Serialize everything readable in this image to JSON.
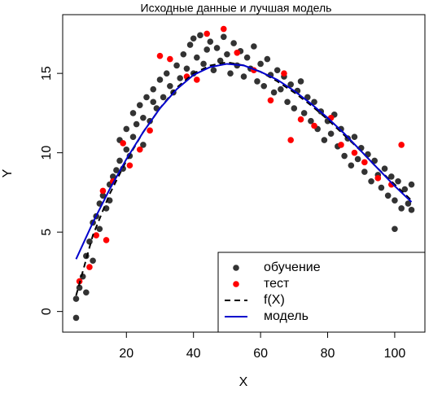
{
  "chart_data": {
    "type": "scatter",
    "title": "Исходные данные и лучшая модель",
    "x_label": "X",
    "y_label": "Y",
    "xlim": [
      1,
      109
    ],
    "ylim": [
      -1.3,
      18.7
    ],
    "xticks": [
      20,
      40,
      60,
      80,
      100
    ],
    "yticks": [
      0,
      5,
      10,
      15
    ],
    "legend": "bottom-right",
    "series": [
      {
        "name": "обучение",
        "color": "#333333",
        "kind": "points",
        "x": [
          5,
          5,
          6,
          7,
          8,
          8,
          9,
          10,
          10,
          11,
          12,
          12,
          13,
          14,
          15,
          15,
          16,
          17,
          18,
          18,
          19,
          20,
          20,
          21,
          22,
          22,
          23,
          24,
          25,
          25,
          26,
          27,
          28,
          28,
          29,
          30,
          31,
          32,
          33,
          34,
          35,
          36,
          37,
          38,
          39,
          40,
          40,
          41,
          42,
          43,
          44,
          45,
          46,
          47,
          48,
          49,
          50,
          51,
          52,
          53,
          54,
          55,
          56,
          57,
          58,
          59,
          60,
          61,
          62,
          63,
          64,
          65,
          66,
          67,
          68,
          69,
          70,
          71,
          72,
          73,
          74,
          75,
          76,
          77,
          78,
          79,
          80,
          81,
          82,
          83,
          84,
          85,
          86,
          87,
          88,
          89,
          90,
          91,
          92,
          93,
          94,
          95,
          96,
          97,
          98,
          99,
          100,
          100,
          101,
          102,
          103,
          104,
          105,
          105
        ],
        "values": [
          -0.4,
          0.8,
          1.5,
          2.2,
          3.5,
          1.2,
          4.4,
          3.2,
          5.6,
          6.0,
          5.2,
          6.8,
          7.3,
          6.5,
          8.0,
          7.0,
          8.5,
          8.9,
          9.5,
          10.8,
          9.0,
          10.2,
          11.5,
          9.8,
          12.5,
          11.0,
          11.8,
          13.0,
          12.2,
          10.5,
          13.5,
          12.0,
          14.0,
          13.2,
          12.8,
          14.6,
          13.5,
          15.0,
          14.2,
          13.8,
          15.5,
          14.7,
          16.2,
          15.3,
          16.8,
          15.0,
          17.2,
          16.0,
          17.4,
          15.6,
          16.5,
          17.0,
          15.2,
          16.6,
          15.8,
          17.3,
          16.2,
          15.0,
          16.9,
          15.5,
          16.4,
          14.8,
          16.0,
          15.3,
          16.7,
          14.5,
          15.6,
          14.2,
          15.9,
          14.9,
          13.8,
          15.2,
          14.0,
          14.8,
          13.2,
          14.3,
          12.8,
          13.9,
          14.5,
          12.5,
          13.5,
          12.0,
          13.2,
          11.5,
          12.6,
          10.8,
          12.0,
          11.2,
          12.4,
          10.4,
          11.5,
          9.8,
          10.9,
          9.2,
          11.0,
          9.6,
          10.3,
          8.8,
          9.9,
          8.2,
          9.5,
          8.6,
          7.8,
          9.0,
          7.3,
          8.5,
          7.0,
          5.2,
          8.2,
          6.5,
          7.7,
          6.8,
          8.0,
          6.4
        ]
      },
      {
        "name": "тест",
        "color": "#ff0000",
        "kind": "points",
        "x": [
          6,
          9,
          11,
          13,
          14,
          16,
          19,
          21,
          24,
          27,
          30,
          33,
          38,
          41,
          44,
          49,
          53,
          58,
          63,
          67,
          69,
          72,
          76,
          81,
          84,
          88,
          91,
          95,
          99,
          102
        ],
        "values": [
          1.9,
          2.8,
          4.8,
          7.6,
          4.5,
          8.2,
          10.6,
          9.2,
          10.2,
          11.4,
          16.1,
          15.9,
          14.8,
          14.6,
          17.5,
          17.8,
          16.3,
          15.2,
          13.3,
          15.0,
          10.8,
          12.1,
          11.7,
          12.2,
          10.5,
          10.0,
          9.4,
          8.4,
          8.0,
          10.5
        ]
      },
      {
        "name": "f(X)",
        "color": "#000000",
        "kind": "line",
        "dashed": true,
        "x": [
          5,
          10,
          15,
          20,
          25,
          30,
          35,
          40,
          45,
          50,
          55,
          60,
          65,
          70,
          75,
          80,
          85,
          90,
          95,
          100,
          105
        ],
        "values": [
          1.0,
          4.8,
          7.4,
          9.5,
          11.3,
          12.8,
          14.1,
          15.0,
          15.5,
          15.7,
          15.5,
          15.1,
          14.5,
          13.8,
          13.0,
          12.1,
          11.1,
          10.1,
          9.0,
          8.0,
          7.0
        ]
      },
      {
        "name": "модель",
        "color": "#0000cc",
        "kind": "line",
        "dashed": false,
        "x": [
          5,
          10,
          15,
          20,
          25,
          30,
          35,
          40,
          45,
          50,
          55,
          60,
          65,
          70,
          75,
          80,
          85,
          90,
          95,
          100,
          105
        ],
        "values": [
          3.3,
          5.6,
          7.7,
          9.6,
          11.3,
          12.8,
          14.0,
          14.9,
          15.4,
          15.6,
          15.5,
          15.1,
          14.6,
          13.9,
          13.1,
          12.2,
          11.2,
          10.1,
          9.0,
          7.9,
          6.9
        ]
      }
    ]
  }
}
